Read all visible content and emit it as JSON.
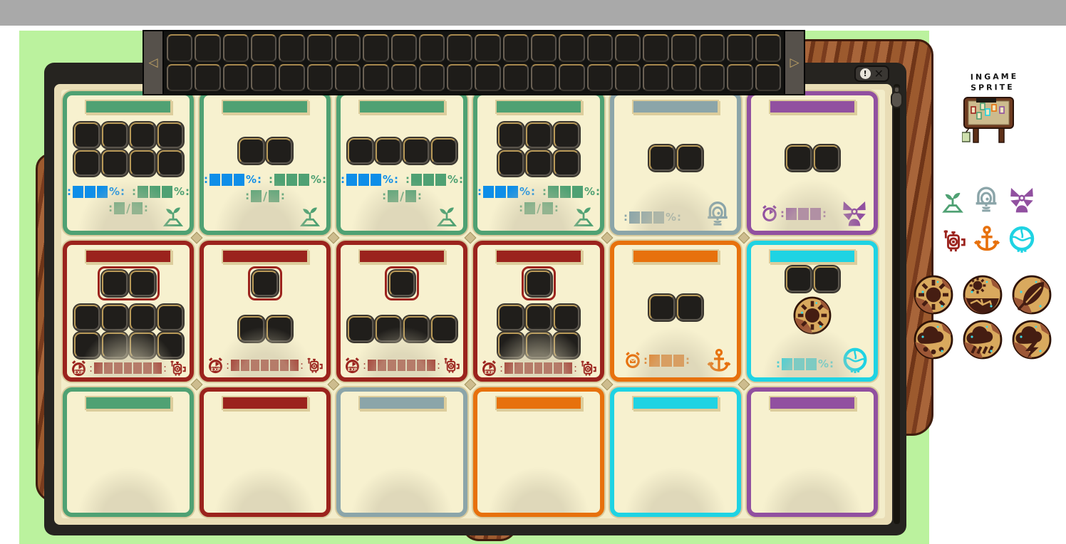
{
  "colors": {
    "green": "#4fa173",
    "red": "#9b231d",
    "gray": "#8ba5a9",
    "purple": "#9150a0",
    "orange": "#e7710d",
    "cyan": "#1fd3e3",
    "blue": "#0e8ee8",
    "card_bg": "#f7f1cf",
    "frame_tan": "#e9ddb6",
    "panel_cream": "#f3edca",
    "window_dark": "#262420",
    "green_bg": "#bbf29e",
    "gray_band": "#a9a9a9",
    "badge_gold": "#d9a95e",
    "badge_brown": "#9c5736",
    "badge_dark": "#451d12",
    "sparkle": "#3bd9e6"
  },
  "window": {
    "controls": {
      "info_label": "!",
      "close_label": "✕"
    }
  },
  "slot_bar": {
    "rows": 2,
    "slots_per_row": 22,
    "left_arrow": "◁",
    "right_arrow": "▷"
  },
  "stats_text": {
    "colon": ":",
    "percent": "%",
    "slash": "/",
    "exp": "EXP"
  },
  "stats_meta": {
    "percent_blocks": 3,
    "ratio_blocks": 1,
    "exp_blocks": 7,
    "clock_blocks": 3,
    "dual_first_color": "blue"
  },
  "cards": [
    {
      "color": "green",
      "slot_rows": [
        4,
        4
      ],
      "stats": "dual_percent_ratio",
      "corner_icon": "sprout-icon"
    },
    {
      "color": "green",
      "slot_rows": [
        2
      ],
      "stats": "dual_percent_ratio",
      "corner_icon": "sprout-icon"
    },
    {
      "color": "green",
      "slot_rows": [
        4
      ],
      "stats": "dual_percent_ratio",
      "corner_icon": "sprout-icon"
    },
    {
      "color": "green",
      "slot_rows": [
        3,
        3
      ],
      "stats": "dual_percent_ratio",
      "corner_icon": "sprout-icon"
    },
    {
      "color": "gray",
      "slot_rows": [
        2
      ],
      "stats": "percent_only",
      "corner_icon": "belljar-icon"
    },
    {
      "color": "purple",
      "slot_rows": [
        2
      ],
      "stats": "clock_blocks",
      "clock_style": "wedge",
      "corner_icon": "windmill-icon"
    },
    {
      "color": "red",
      "featured_slots": 2,
      "slot_rows": [
        4,
        4
      ],
      "stats": "exp_bar",
      "corner_icon": "robot-icon"
    },
    {
      "color": "red",
      "featured_slots": 1,
      "slot_rows": [
        2
      ],
      "stats": "exp_bar",
      "corner_icon": "robot-icon"
    },
    {
      "color": "red",
      "featured_slots": 1,
      "slot_rows": [
        4
      ],
      "stats": "exp_bar",
      "corner_icon": "robot-icon"
    },
    {
      "color": "red",
      "featured_slots": 1,
      "slot_rows": [
        3,
        3
      ],
      "stats": "exp_bar",
      "corner_icon": "robot-icon"
    },
    {
      "color": "orange",
      "slot_rows": [
        2
      ],
      "stats": "clock_blocks",
      "clock_style": "mail",
      "corner_icon": "anchor-icon"
    },
    {
      "color": "cyan",
      "slot_rows": [
        2
      ],
      "slots_at_top": true,
      "center_badge": "sun-badge",
      "stats": "percent_only",
      "corner_icon": "jellyfish-icon"
    },
    {
      "color": "green",
      "empty": true
    },
    {
      "color": "red",
      "empty": true
    },
    {
      "color": "gray",
      "empty": true
    },
    {
      "color": "orange",
      "empty": true
    },
    {
      "color": "cyan",
      "empty": true
    },
    {
      "color": "purple",
      "empty": true
    }
  ],
  "side_panel": {
    "label_line1": "INGAME",
    "label_line2": "SPRITE",
    "icons": [
      {
        "name": "sprout-icon",
        "color": "green"
      },
      {
        "name": "belljar-icon",
        "color": "gray"
      },
      {
        "name": "windmill-icon",
        "color": "purple"
      },
      {
        "name": "robot-icon",
        "color": "red"
      },
      {
        "name": "anchor-icon",
        "color": "orange"
      },
      {
        "name": "jellyfish-icon",
        "color": "cyan"
      }
    ],
    "badges": [
      {
        "name": "sun-badge"
      },
      {
        "name": "drought-badge"
      },
      {
        "name": "leaf-badge"
      },
      {
        "name": "hail-badge"
      },
      {
        "name": "rain-badge"
      },
      {
        "name": "storm-badge"
      }
    ]
  }
}
